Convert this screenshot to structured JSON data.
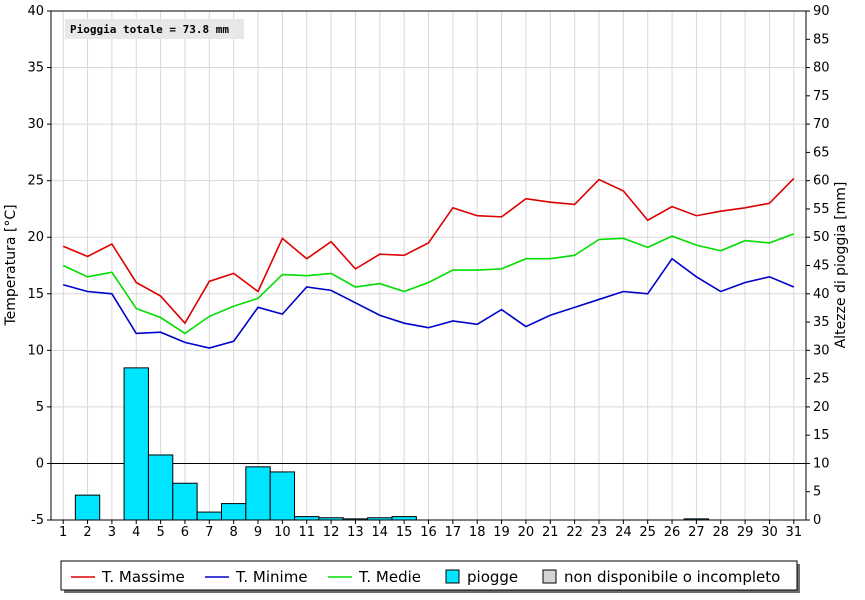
{
  "chart_data": {
    "type": "line+bar",
    "x": [
      1,
      2,
      3,
      4,
      5,
      6,
      7,
      8,
      9,
      10,
      11,
      12,
      13,
      14,
      15,
      16,
      17,
      18,
      19,
      20,
      21,
      22,
      23,
      24,
      25,
      26,
      27,
      28,
      29,
      30,
      31
    ],
    "xlim": [
      1,
      31
    ],
    "ylabel_left": "Temperatura [°C]",
    "ylim_left": [
      -5,
      40
    ],
    "yticks_left": [
      -5,
      0,
      5,
      10,
      15,
      20,
      25,
      30,
      35,
      40
    ],
    "ylabel_right": "Altezze di pioggia [mm]",
    "ylim_right": [
      0,
      90
    ],
    "yticks_right": [
      0,
      5,
      10,
      15,
      20,
      25,
      30,
      35,
      40,
      45,
      50,
      55,
      60,
      65,
      70,
      75,
      80,
      85,
      90
    ],
    "annotation": "Pioggia totale = 73.8 mm",
    "grid": true,
    "series": [
      {
        "name": "T. Massime",
        "color": "#dd0000",
        "axis": "left",
        "values": [
          19.2,
          18.3,
          19.4,
          16.0,
          14.8,
          12.4,
          16.1,
          16.8,
          15.2,
          19.9,
          18.1,
          19.6,
          17.2,
          18.5,
          18.4,
          19.5,
          22.6,
          21.9,
          21.8,
          23.4,
          23.1,
          22.9,
          25.1,
          24.1,
          21.5,
          22.7,
          21.9,
          22.3,
          22.6,
          23.0,
          25.2
        ]
      },
      {
        "name": "T. Minime",
        "color": "#0000cc",
        "axis": "left",
        "values": [
          15.8,
          15.2,
          15.0,
          11.5,
          11.6,
          10.7,
          10.2,
          10.8,
          13.8,
          13.2,
          15.6,
          15.3,
          14.2,
          13.1,
          12.4,
          12.0,
          12.6,
          12.3,
          13.6,
          12.1,
          13.1,
          13.8,
          14.5,
          15.2,
          15.0,
          18.1,
          16.5,
          15.2,
          16.0,
          16.5,
          15.6
        ]
      },
      {
        "name": "T. Medie",
        "color": "#00dd00",
        "axis": "left",
        "values": [
          17.5,
          16.5,
          16.9,
          13.7,
          12.9,
          11.5,
          13.0,
          13.9,
          14.6,
          16.7,
          16.6,
          16.8,
          15.6,
          15.9,
          15.2,
          16.0,
          17.1,
          17.1,
          17.2,
          18.1,
          18.1,
          18.4,
          19.8,
          19.9,
          19.1,
          20.1,
          19.3,
          18.8,
          19.7,
          19.5,
          20.3
        ]
      },
      {
        "name": "piogge",
        "color": "#00e5ff",
        "axis": "right",
        "type": "bar",
        "values": [
          0,
          4.4,
          0,
          26.9,
          11.5,
          6.5,
          1.4,
          2.9,
          9.4,
          8.5,
          0.6,
          0.4,
          0.2,
          0.4,
          0.6,
          0,
          0,
          0,
          0,
          0,
          0,
          0,
          0,
          0,
          0,
          0,
          0.2,
          0,
          0,
          0,
          0
        ]
      }
    ],
    "legend": {
      "position": "bottom",
      "entries": [
        {
          "label": "T. Massime",
          "swatch": "line",
          "color": "#dd0000"
        },
        {
          "label": "T. Minime",
          "swatch": "line",
          "color": "#0000cc"
        },
        {
          "label": "T. Medie",
          "swatch": "line",
          "color": "#00dd00"
        },
        {
          "label": "piogge",
          "swatch": "box",
          "color": "#00e5ff"
        },
        {
          "label": "non disponibile o incompleto",
          "swatch": "box",
          "color": "#d4d4d4"
        }
      ]
    }
  }
}
